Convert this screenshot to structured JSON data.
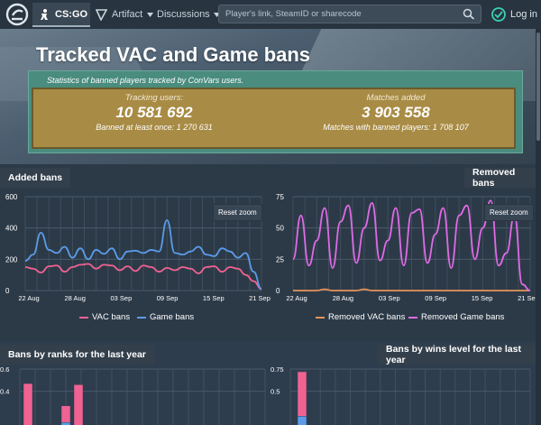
{
  "header": {
    "game_label": "CS:GO",
    "artifact_label": "Artifact",
    "discussions_label": "Discussions",
    "search_placeholder": "Player's link, SteamID or sharecode",
    "login_label": "Log in"
  },
  "hero": {
    "title": "Tracked VAC and Game bans",
    "subtitle": "Statistics of banned players tracked by ConVars users.",
    "tracking_label": "Tracking users:",
    "tracking_value": "10 581 692",
    "banned_note": "Banned at least once: 1 270 631",
    "matches_label": "Matches added",
    "matches_value": "3 903 558",
    "matches_note": "Matches with banned players: 1 708 107"
  },
  "colors": {
    "vac": "#f06292",
    "game": "#5b9be8",
    "removed_vac": "#e8935a",
    "removed_game": "#e06ae6"
  },
  "chart_data": [
    {
      "type": "line",
      "title": "Added bans",
      "reset_label": "Reset zoom",
      "categories": [
        "22 Aug",
        "28 Aug",
        "03 Sep",
        "09 Sep",
        "15 Sep",
        "21 Sep"
      ],
      "ylim": [
        0,
        600
      ],
      "yticks": [
        0,
        200,
        400,
        600
      ],
      "x": [
        0,
        1,
        2,
        3,
        4,
        5,
        6,
        7,
        8,
        9,
        10,
        11,
        12,
        13,
        14,
        15,
        16,
        17,
        18,
        19,
        20,
        21,
        22,
        23,
        24,
        25,
        26,
        27,
        28,
        29,
        30
      ],
      "series": [
        {
          "name": "VAC bans",
          "values": [
            150,
            140,
            115,
            155,
            160,
            120,
            150,
            165,
            170,
            140,
            165,
            160,
            130,
            155,
            125,
            160,
            150,
            120,
            145,
            130,
            150,
            140,
            110,
            150,
            155,
            120,
            150,
            140,
            100,
            60,
            10
          ]
        },
        {
          "name": "Game bans",
          "values": [
            190,
            230,
            370,
            260,
            240,
            280,
            210,
            270,
            200,
            260,
            235,
            270,
            200,
            250,
            255,
            240,
            260,
            250,
            450,
            240,
            230,
            250,
            280,
            230,
            220,
            270,
            250,
            210,
            240,
            120,
            10
          ]
        }
      ]
    },
    {
      "type": "line",
      "title": "Removed bans",
      "reset_label": "Reset zoom",
      "categories": [
        "22 Aug",
        "28 Aug",
        "03 Sep",
        "09 Sep",
        "15 Sep",
        "21 Sep"
      ],
      "ylim": [
        0,
        75
      ],
      "yticks": [
        0,
        25,
        50,
        75
      ],
      "x": [
        0,
        1,
        2,
        3,
        4,
        5,
        6,
        7,
        8,
        9,
        10,
        11,
        12,
        13,
        14,
        15,
        16,
        17,
        18,
        19,
        20,
        21,
        22,
        23,
        24,
        25,
        26,
        27,
        28,
        29,
        30
      ],
      "series": [
        {
          "name": "Removed VAC bans",
          "values": [
            0,
            0,
            0,
            0,
            1,
            0,
            0,
            0,
            0,
            1,
            0,
            0,
            0,
            0,
            0,
            0,
            0,
            0,
            0,
            0,
            0,
            0,
            0,
            0,
            0,
            0,
            0,
            0,
            0,
            0,
            0
          ]
        },
        {
          "name": "Removed Game bans",
          "values": [
            25,
            60,
            20,
            40,
            66,
            18,
            55,
            68,
            22,
            50,
            70,
            24,
            40,
            66,
            20,
            62,
            65,
            22,
            45,
            66,
            18,
            60,
            68,
            25,
            50,
            72,
            20,
            30,
            60,
            5,
            0
          ]
        }
      ]
    },
    {
      "type": "bar",
      "title": "Bans by ranks for the last year",
      "ylim": [
        0,
        0.6
      ],
      "yticks": [
        0.4,
        0.6
      ],
      "series": [
        {
          "name": "VAC bans",
          "values": [
            0.47,
            0,
            0,
            0.27,
            0.46
          ]
        },
        {
          "name": "Game bans",
          "values": [
            0,
            0,
            0,
            0.12,
            0
          ]
        }
      ]
    },
    {
      "type": "bar",
      "title": "Bans by wins level for the last year",
      "ylim": [
        0,
        0.75
      ],
      "yticks": [
        0.5,
        0.75
      ],
      "series": [
        {
          "name": "VAC bans",
          "values": [
            0.72
          ]
        },
        {
          "name": "Game bans",
          "values": [
            0.22
          ]
        }
      ]
    }
  ]
}
